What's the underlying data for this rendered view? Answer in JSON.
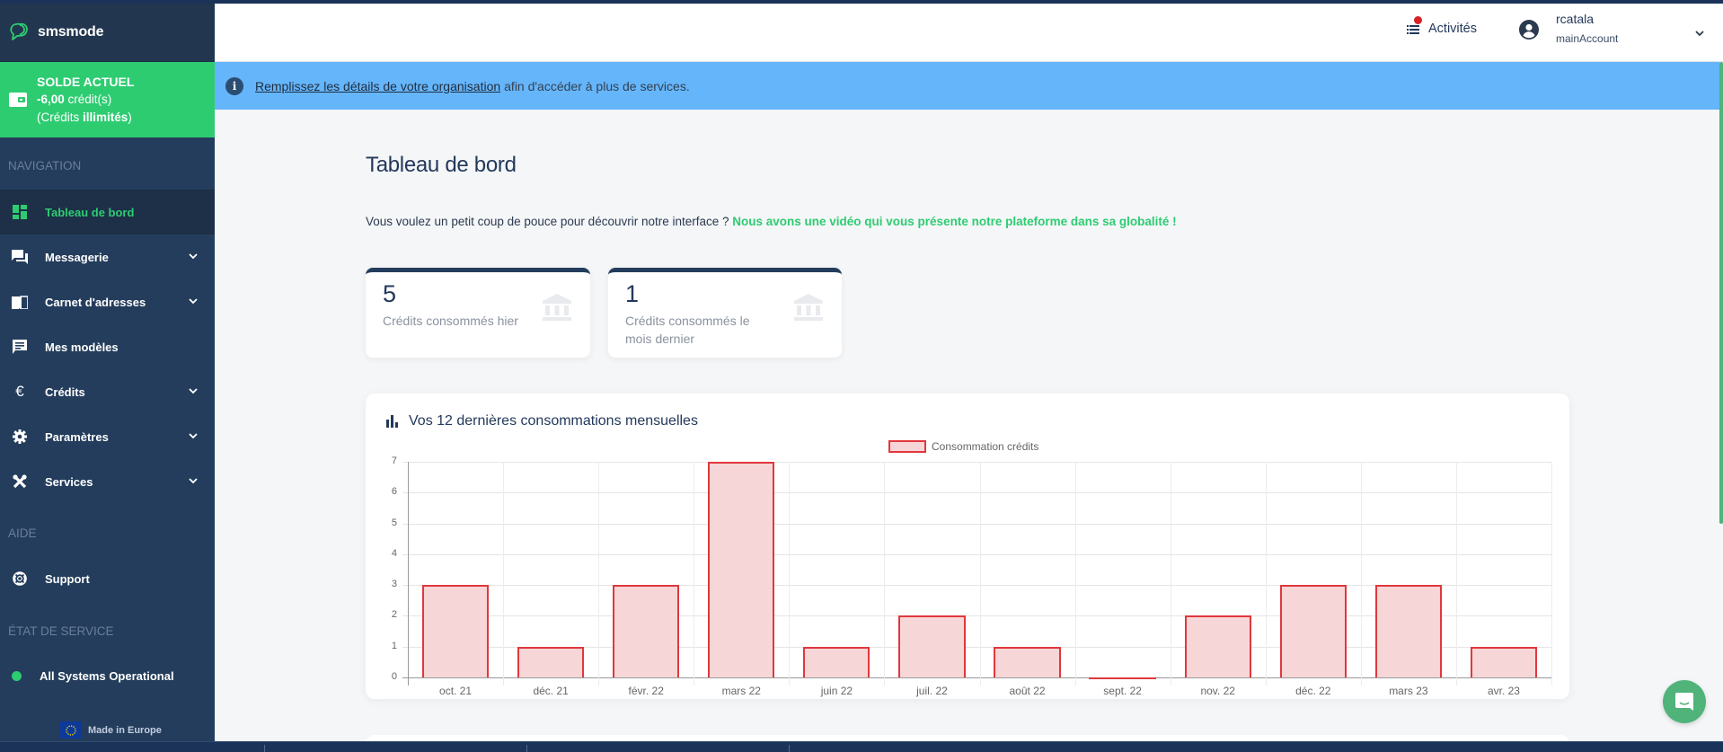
{
  "app": {
    "brand": "smsmode",
    "colors": {
      "sidebar": "#243d5c",
      "accent_green": "#2ecc71",
      "banner_blue": "#65b5fb",
      "bar_fill": "#f7d6d7",
      "bar_border": "#e0383d",
      "alert_red": "#d82027"
    }
  },
  "sidebar": {
    "balance": {
      "title": "SOLDE ACTUEL",
      "amount": "-6,00",
      "unit": " crédit(s)",
      "unlimited_prefix": "(Crédits ",
      "unlimited_value": "illimités",
      "unlimited_suffix": ")"
    },
    "sections": {
      "navigation": "NAVIGATION",
      "help": "AIDE",
      "service_status": "ÉTAT DE SERVICE"
    },
    "items": [
      {
        "label": "Tableau de bord",
        "icon": "dashboard-icon",
        "active": true,
        "expandable": false
      },
      {
        "label": "Messagerie",
        "icon": "chat-icon",
        "active": false,
        "expandable": true
      },
      {
        "label": "Carnet d'adresses",
        "icon": "address-book-icon",
        "active": false,
        "expandable": true
      },
      {
        "label": "Mes modèles",
        "icon": "template-icon",
        "active": false,
        "expandable": false
      },
      {
        "label": "Crédits",
        "icon": "euro-icon",
        "active": false,
        "expandable": true
      },
      {
        "label": "Paramètres",
        "icon": "gear-icon",
        "active": false,
        "expandable": true
      },
      {
        "label": "Services",
        "icon": "tools-icon",
        "active": false,
        "expandable": true
      }
    ],
    "help_items": [
      {
        "label": "Support",
        "icon": "lifebuoy-icon"
      }
    ],
    "status": {
      "label": "All Systems Operational",
      "color": "#2ecc71"
    },
    "footer": {
      "label": "Made in Europe"
    }
  },
  "header": {
    "activities_label": "Activités",
    "user": {
      "name": "rcatala",
      "account": "mainAccount"
    }
  },
  "banner": {
    "link_text": "Remplissez les détails de votre organisation",
    "text": "afin d'accéder à plus de services."
  },
  "main": {
    "title": "Tableau de bord",
    "intro_text": "Vous voulez un petit coup de pouce pour découvrir notre interface ? ",
    "intro_link": "Nous avons une vidéo qui vous présente notre plateforme dans sa globalité !",
    "stats": [
      {
        "value": "5",
        "label": "Crédits consommés hier"
      },
      {
        "value": "1",
        "label": "Crédits consommés le mois dernier"
      }
    ],
    "chart_title": "Vos 12 dernières consommations mensuelles"
  },
  "chart_data": {
    "type": "bar",
    "title": "Vos 12 dernières consommations mensuelles",
    "categories": [
      "oct. 21",
      "déc. 21",
      "févr. 22",
      "mars 22",
      "juin 22",
      "juil. 22",
      "août 22",
      "sept. 22",
      "nov. 22",
      "déc. 22",
      "mars 23",
      "avr. 23"
    ],
    "series": [
      {
        "name": "Consommation crédits",
        "values": [
          3,
          1,
          3,
          7,
          1,
          2,
          1,
          0,
          2,
          3,
          3,
          1
        ]
      }
    ],
    "xlabel": "",
    "ylabel": "",
    "ylim": [
      0,
      7
    ],
    "yticks": [
      0,
      1,
      2,
      3,
      4,
      5,
      6,
      7
    ],
    "grid": true,
    "legend_position": "top"
  }
}
